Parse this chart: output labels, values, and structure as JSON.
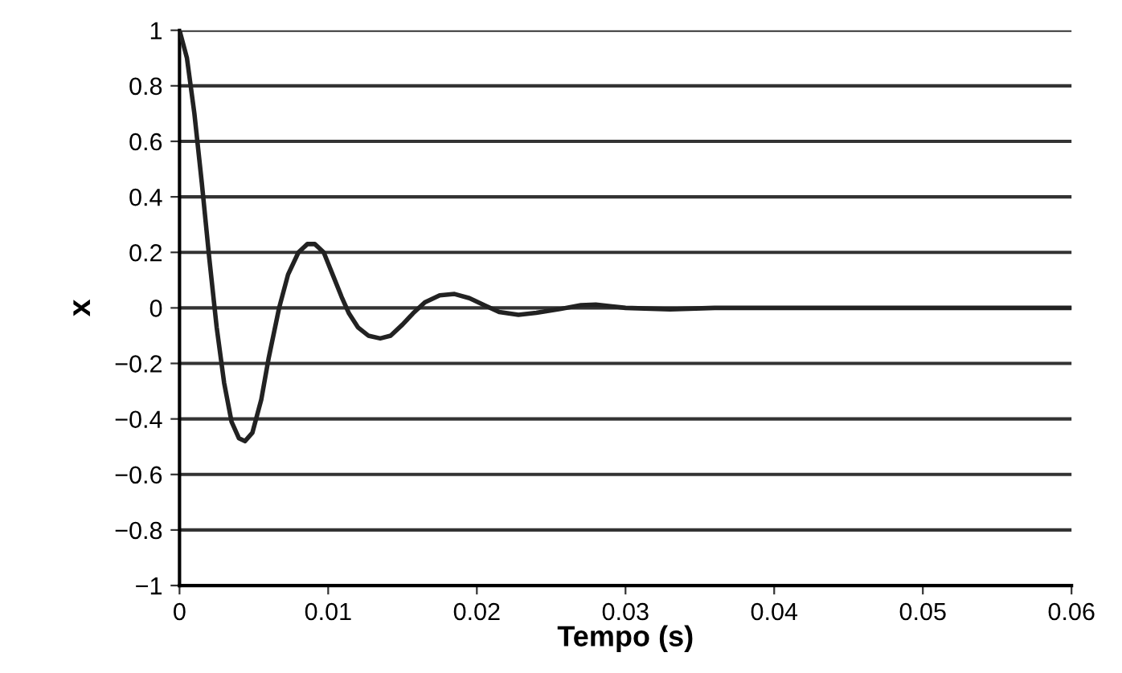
{
  "chart_data": {
    "type": "line",
    "xlabel": "Tempo (s)",
    "ylabel": "x",
    "xlim": [
      0,
      0.06
    ],
    "ylim": [
      -1,
      1
    ],
    "xticks": [
      0,
      0.01,
      0.02,
      0.03,
      0.04,
      0.05,
      0.06
    ],
    "yticks": [
      1,
      0.8,
      0.6,
      0.4,
      0.2,
      0,
      {
        "value": -0.2,
        "label": "−0.2"
      },
      {
        "value": -0.4,
        "label": "−0.4"
      },
      {
        "value": -0.6,
        "label": "−0.6"
      },
      {
        "value": -0.8,
        "label": "−0.8"
      },
      {
        "value": -1,
        "label": "−1"
      }
    ],
    "grid": "y",
    "legend": false,
    "marker": "none",
    "line_style": "solid",
    "series": [
      {
        "color": "#222222",
        "x": [
          0,
          0.0005,
          0.001,
          0.0015,
          0.002,
          0.0025,
          0.003,
          0.0035,
          0.004,
          0.0044,
          0.0049,
          0.0055,
          0.006,
          0.0067,
          0.0073,
          0.008,
          0.0086,
          0.0091,
          0.0097,
          0.0103,
          0.0109,
          0.0114,
          0.012,
          0.0127,
          0.0135,
          0.0142,
          0.015,
          0.0157,
          0.0165,
          0.0175,
          0.0185,
          0.0195,
          0.0205,
          0.0215,
          0.0228,
          0.024,
          0.0255,
          0.027,
          0.028,
          0.03,
          0.033,
          0.036,
          0.045,
          0.06
        ],
        "values": [
          1,
          0.9,
          0.7,
          0.45,
          0.18,
          -0.07,
          -0.27,
          -0.41,
          -0.47,
          -0.48,
          -0.45,
          -0.33,
          -0.18,
          0.0,
          0.12,
          0.2,
          0.23,
          0.23,
          0.2,
          0.12,
          0.04,
          -0.02,
          -0.07,
          -0.1,
          -0.11,
          -0.1,
          -0.06,
          -0.02,
          0.02,
          0.045,
          0.05,
          0.035,
          0.01,
          -0.015,
          -0.025,
          -0.018,
          -0.005,
          0.01,
          0.012,
          0.0,
          -0.005,
          0.0,
          0.0,
          0.0
        ]
      }
    ]
  }
}
